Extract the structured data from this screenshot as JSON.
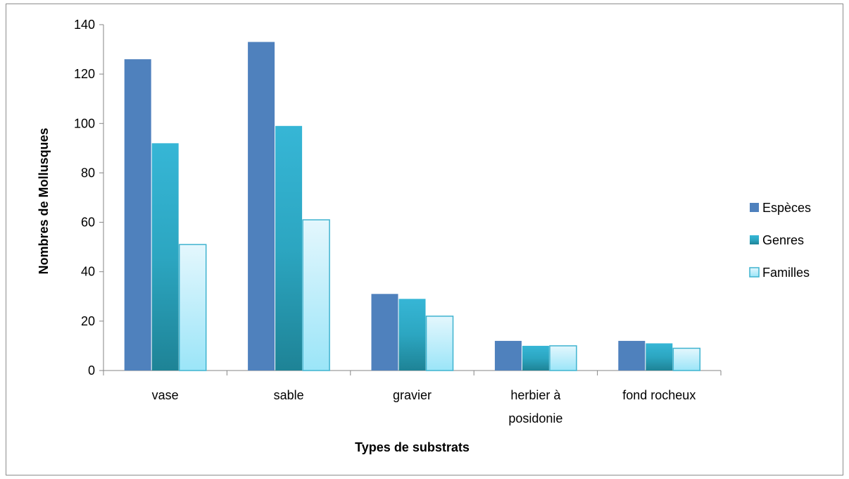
{
  "chart_data": {
    "type": "bar",
    "title": "",
    "xlabel": "Types de substrats",
    "ylabel": "Nombres de Mollusques",
    "categories": [
      [
        "vase"
      ],
      [
        "sable"
      ],
      [
        "gravier"
      ],
      [
        "herbier à",
        "posidonie"
      ],
      [
        "fond rocheux"
      ]
    ],
    "series": [
      {
        "name": "Espèces",
        "values": [
          126,
          133,
          31,
          12,
          12
        ],
        "color": "#4F81BD"
      },
      {
        "name": "Genres",
        "values": [
          92,
          99,
          29,
          10,
          11
        ],
        "color": "#31B1CF"
      },
      {
        "name": "Familles",
        "values": [
          51,
          61,
          22,
          10,
          9
        ],
        "color": "#B6EBF8"
      }
    ],
    "ylim": [
      0,
      140
    ],
    "yticks": [
      0,
      20,
      40,
      60,
      80,
      100,
      120,
      140
    ],
    "grid": false,
    "legend_position": "right"
  }
}
